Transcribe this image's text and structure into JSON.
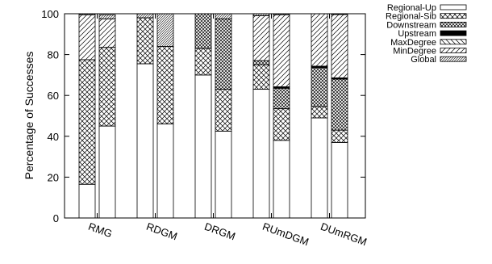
{
  "chart_data": {
    "type": "bar",
    "stacked": true,
    "title": "",
    "xlabel": "",
    "ylabel": "Percentage of Successes",
    "ylim": [
      0,
      100
    ],
    "yticks": [
      0,
      20,
      40,
      60,
      80,
      100
    ],
    "grid": false,
    "legend_position": "top-right",
    "categories": [
      "RMG",
      "RDGM",
      "DRGM",
      "RUmDGM",
      "DUmRGM"
    ],
    "bars_per_category": 2,
    "series": [
      {
        "name": "Regional-Up",
        "pattern": "blank",
        "values": [
          [
            16.5,
            45
          ],
          [
            75.5,
            46
          ],
          [
            70,
            42.5
          ],
          [
            63,
            38
          ],
          [
            49,
            37
          ]
        ]
      },
      {
        "name": "Regional-Sib",
        "pattern": "crosshatch",
        "values": [
          [
            61,
            38.5
          ],
          [
            22.5,
            38
          ],
          [
            13,
            20.5
          ],
          [
            12,
            15.5
          ],
          [
            5.5,
            6
          ]
        ]
      },
      {
        "name": "Downstream",
        "pattern": "dense-crosshatch",
        "values": [
          [
            0,
            0
          ],
          [
            0,
            0
          ],
          [
            17,
            34.5
          ],
          [
            2,
            10
          ],
          [
            19,
            25
          ]
        ]
      },
      {
        "name": "Upstream",
        "pattern": "solid",
        "values": [
          [
            0,
            0
          ],
          [
            0,
            0
          ],
          [
            0,
            0
          ],
          [
            0,
            0.7
          ],
          [
            0.8,
            0.6
          ]
        ]
      },
      {
        "name": "MaxDegree",
        "pattern": "diag-down",
        "values": [
          [
            0,
            0
          ],
          [
            0,
            0
          ],
          [
            0,
            0
          ],
          [
            0,
            0
          ],
          [
            0,
            0
          ]
        ]
      },
      {
        "name": "MinDegree",
        "pattern": "diag-up",
        "values": [
          [
            22,
            14
          ],
          [
            0,
            0
          ],
          [
            0,
            0
          ],
          [
            22,
            35.3
          ],
          [
            25.7,
            31
          ]
        ]
      },
      {
        "name": "Global",
        "pattern": "dense-diag",
        "values": [
          [
            0.5,
            2
          ],
          [
            2,
            16
          ],
          [
            0,
            2.5
          ],
          [
            1,
            0.5
          ],
          [
            0,
            0.4
          ]
        ]
      }
    ]
  },
  "colors": {
    "stroke": "#000000",
    "fill": "#ffffff"
  }
}
